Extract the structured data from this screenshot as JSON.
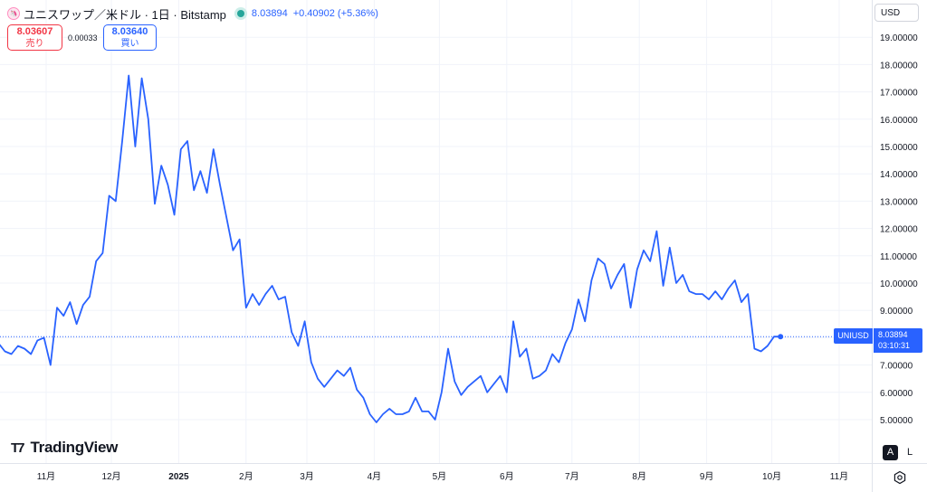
{
  "header": {
    "title": "ユニスワップ／米ドル · 1日 · Bitstamp",
    "last_price": "8.03894",
    "change": "+0.40902 (+5.36%)"
  },
  "trade": {
    "sell_price": "8.03607",
    "sell_label": "売り",
    "spread": "0.00033",
    "buy_price": "8.03640",
    "buy_label": "買い"
  },
  "currency": "USD",
  "logo_text": "TradingView",
  "scale_buttons": {
    "auto": "A",
    "log": "L"
  },
  "last_label": {
    "symbol": "UNIUSD",
    "price": "8.03894",
    "countdown": "03:10:31"
  },
  "colors": {
    "line": "#2962ff",
    "up": "#26a69a",
    "sell": "#f23645",
    "buy": "#2962ff",
    "grid": "#f0f3fa"
  },
  "chart_data": {
    "type": "line",
    "ylim": [
      4.0,
      19.5
    ],
    "y_ticks": [
      "19.00000",
      "18.00000",
      "17.00000",
      "16.00000",
      "15.00000",
      "14.00000",
      "13.00000",
      "12.00000",
      "11.00000",
      "10.00000",
      "9.00000",
      "8.00000",
      "7.00000",
      "6.00000",
      "5.00000"
    ],
    "x_ticks": [
      "11月",
      "12月",
      "2025",
      "2月",
      "3月",
      "4月",
      "5月",
      "6月",
      "7月",
      "8月",
      "9月",
      "10月",
      "11月"
    ],
    "series": [
      {
        "x": [
          "2024-10-10",
          "2024-10-13",
          "2024-10-16",
          "2024-10-19",
          "2024-10-22",
          "2024-10-25",
          "2024-10-28",
          "2024-10-31",
          "2024-11-03",
          "2024-11-06",
          "2024-11-09",
          "2024-11-12",
          "2024-11-15",
          "2024-11-18",
          "2024-11-21",
          "2024-11-24",
          "2024-11-27",
          "2024-11-30",
          "2024-12-03",
          "2024-12-06",
          "2024-12-09",
          "2024-12-12",
          "2024-12-15",
          "2024-12-18",
          "2024-12-21",
          "2024-12-24",
          "2024-12-27",
          "2024-12-30",
          "2025-01-02",
          "2025-01-05",
          "2025-01-08",
          "2025-01-11",
          "2025-01-14",
          "2025-01-17",
          "2025-01-20",
          "2025-01-23",
          "2025-01-26",
          "2025-01-29",
          "2025-02-01",
          "2025-02-04",
          "2025-02-07",
          "2025-02-10",
          "2025-02-13",
          "2025-02-16",
          "2025-02-19",
          "2025-02-22",
          "2025-02-25",
          "2025-02-28",
          "2025-03-03",
          "2025-03-06",
          "2025-03-09",
          "2025-03-12",
          "2025-03-15",
          "2025-03-18",
          "2025-03-21",
          "2025-03-24",
          "2025-03-27",
          "2025-03-30",
          "2025-04-02",
          "2025-04-05",
          "2025-04-08",
          "2025-04-11",
          "2025-04-14",
          "2025-04-17",
          "2025-04-20",
          "2025-04-23",
          "2025-04-26",
          "2025-04-29",
          "2025-05-02",
          "2025-05-05",
          "2025-05-08",
          "2025-05-11",
          "2025-05-14",
          "2025-05-17",
          "2025-05-20",
          "2025-05-23",
          "2025-05-26",
          "2025-05-29",
          "2025-06-01",
          "2025-06-04",
          "2025-06-07",
          "2025-06-10",
          "2025-06-13",
          "2025-06-16",
          "2025-06-19",
          "2025-06-22",
          "2025-06-25",
          "2025-06-28",
          "2025-07-01",
          "2025-07-04",
          "2025-07-07",
          "2025-07-10",
          "2025-07-13",
          "2025-07-16",
          "2025-07-19",
          "2025-07-22",
          "2025-07-25",
          "2025-07-28",
          "2025-07-31",
          "2025-08-03",
          "2025-08-06",
          "2025-08-09",
          "2025-08-12",
          "2025-08-15",
          "2025-08-18",
          "2025-08-21",
          "2025-08-24",
          "2025-08-27",
          "2025-08-30",
          "2025-09-02",
          "2025-09-05",
          "2025-09-08",
          "2025-09-11",
          "2025-09-14",
          "2025-09-17",
          "2025-09-20",
          "2025-09-23",
          "2025-09-26",
          "2025-09-29",
          "2025-10-02",
          "2025-10-05"
        ],
        "values": [
          7.8,
          7.5,
          7.4,
          7.7,
          7.6,
          7.4,
          7.9,
          8.0,
          7.0,
          9.1,
          8.8,
          9.3,
          8.5,
          9.2,
          9.5,
          10.8,
          11.1,
          13.2,
          13.0,
          15.2,
          17.6,
          15.0,
          17.5,
          16.0,
          12.9,
          14.3,
          13.6,
          12.5,
          14.9,
          15.2,
          13.4,
          14.1,
          13.3,
          14.9,
          13.6,
          12.4,
          11.2,
          11.6,
          9.1,
          9.6,
          9.2,
          9.6,
          9.9,
          9.4,
          9.5,
          8.2,
          7.7,
          8.6,
          7.1,
          6.5,
          6.2,
          6.5,
          6.8,
          6.6,
          6.9,
          6.1,
          5.8,
          5.2,
          4.9,
          5.2,
          5.4,
          5.2,
          5.2,
          5.3,
          5.8,
          5.3,
          5.3,
          5.0,
          6.0,
          7.6,
          6.4,
          5.9,
          6.2,
          6.4,
          6.6,
          6.0,
          6.3,
          6.6,
          6.0,
          8.6,
          7.3,
          7.6,
          6.5,
          6.6,
          6.8,
          7.4,
          7.1,
          7.8,
          8.3,
          9.4,
          8.6,
          10.1,
          10.9,
          10.7,
          9.8,
          10.3,
          10.7,
          9.1,
          10.5,
          11.2,
          10.8,
          11.9,
          9.9,
          11.3,
          10.0,
          10.3,
          9.7,
          9.6,
          9.6,
          9.4,
          9.7,
          9.4,
          9.8,
          10.1,
          9.3,
          9.6,
          7.6,
          7.5,
          7.7,
          8.04,
          8.04
        ]
      }
    ]
  }
}
